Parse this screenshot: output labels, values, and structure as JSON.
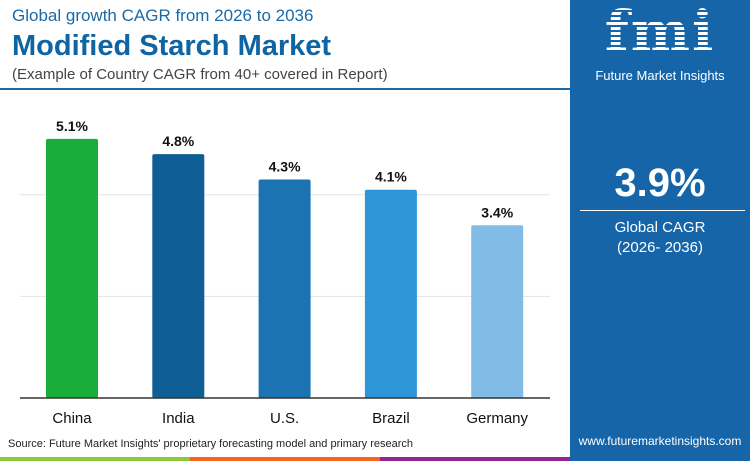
{
  "header": {
    "subtitle": "Global growth CAGR from 2026 to 2036",
    "title": "Modified Starch Market",
    "note": "(Example of Country CAGR from 40+ covered in Report)"
  },
  "panel": {
    "logo_text": "fmi",
    "brand": "Future Market Insights",
    "value": "3.9%",
    "label_line1": "Global CAGR",
    "label_line2": "(2026- 2036)",
    "url": "www.futuremarketinsights.com",
    "color": "#1565a8"
  },
  "footer": {
    "source": "Source: Future Market Insights' proprietary forecasting model and primary research",
    "strip_colors": [
      "#8dc63f",
      "#f26522",
      "#92278f"
    ]
  },
  "chart_data": {
    "type": "bar",
    "categories": [
      "China",
      "India",
      "U.S.",
      "Brazil",
      "Germany"
    ],
    "values": [
      5.1,
      4.8,
      4.3,
      4.1,
      3.4
    ],
    "labels": [
      "5.1%",
      "4.8%",
      "4.3%",
      "4.1%",
      "3.4%"
    ],
    "colors": [
      "#19ad3a",
      "#0f5e96",
      "#1b73b1",
      "#2e96d8",
      "#80bce5"
    ],
    "ylim": [
      0,
      6
    ],
    "grid": true
  }
}
